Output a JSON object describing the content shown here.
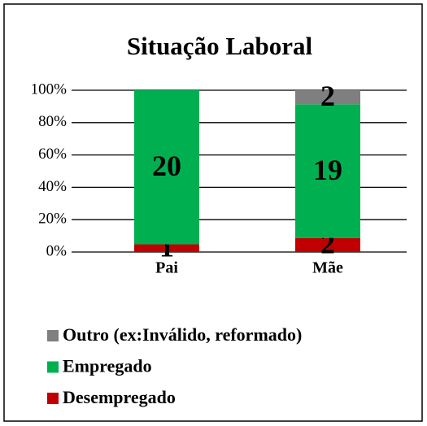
{
  "chart_data": {
    "type": "bar",
    "stacking": "percent",
    "title": "Situação Laboral",
    "categories": [
      "Pai",
      "Mãe"
    ],
    "series": [
      {
        "name": "Desempregado",
        "color": "#c00000",
        "values": [
          1,
          2
        ]
      },
      {
        "name": "Empregado",
        "color": "#00b050",
        "values": [
          20,
          19
        ]
      },
      {
        "name": "Outro (ex:Inválido, reformado)",
        "color": "#7f7f7f",
        "values": [
          null,
          2
        ]
      }
    ],
    "ylim": [
      0,
      100
    ],
    "yticks": [
      {
        "value": 0,
        "label": "0%"
      },
      {
        "value": 20,
        "label": "20%"
      },
      {
        "value": 40,
        "label": "40%"
      },
      {
        "value": 60,
        "label": "60%"
      },
      {
        "value": 80,
        "label": "80%"
      },
      {
        "value": 100,
        "label": "100%"
      }
    ],
    "grid": true
  }
}
